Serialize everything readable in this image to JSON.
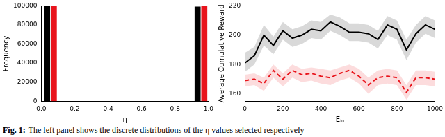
{
  "chart_data": [
    {
      "type": "bar",
      "xlabel": "η",
      "ylabel": "Frequency",
      "xlim": [
        0,
        1
      ],
      "xticks": [
        {
          "value": 0,
          "label": "0.0"
        },
        {
          "value": 0.2,
          "label": "0.2"
        },
        {
          "value": 0.4,
          "label": "0.4"
        },
        {
          "value": 0.6,
          "label": "0.6"
        },
        {
          "value": 0.8,
          "label": "0.8"
        },
        {
          "value": 1,
          "label": "1.0"
        }
      ],
      "ylim": [
        0,
        100000
      ],
      "yticks": [
        0,
        20000,
        40000,
        60000,
        80000,
        100000
      ],
      "grid": false,
      "series": [
        {
          "color": "#000000",
          "x": [
            0.035,
            0.935
          ],
          "values": [
            100000,
            99000
          ]
        },
        {
          "color": "#e8141c",
          "x": [
            0.075,
            0.975
          ],
          "values": [
            100000,
            100000
          ]
        }
      ]
    },
    {
      "type": "line",
      "xlabel": "Eᵢₙ",
      "ylabel": "Average Cumulative Reward",
      "xlim": [
        0,
        1000
      ],
      "xticks": [
        0,
        200,
        400,
        600,
        800,
        1000
      ],
      "ylim": [
        155,
        220
      ],
      "yticks": [
        160,
        180,
        200,
        220
      ],
      "grid": false,
      "x": [
        0,
        50,
        100,
        150,
        200,
        250,
        300,
        350,
        400,
        450,
        500,
        550,
        600,
        650,
        700,
        750,
        800,
        850,
        900,
        950,
        1000
      ],
      "series": [
        {
          "color": "#000000",
          "line_style": "solid",
          "values": [
            181,
            186,
            200,
            193,
            203,
            198,
            200,
            204,
            203,
            209,
            206,
            202,
            202,
            201,
            197,
            207,
            204,
            190,
            201,
            207,
            204
          ],
          "lower": [
            175,
            180,
            193,
            187,
            197,
            192,
            194,
            198,
            197,
            203,
            200,
            196,
            196,
            195,
            191,
            200,
            197,
            183,
            195,
            201,
            198
          ],
          "upper": [
            188,
            192,
            207,
            199,
            209,
            204,
            206,
            210,
            209,
            214,
            212,
            208,
            208,
            207,
            203,
            213,
            210,
            197,
            207,
            213,
            210
          ]
        },
        {
          "color": "#e8141c",
          "line_style": "dashed",
          "values": [
            169,
            170,
            167,
            176,
            170,
            176,
            173,
            174,
            172,
            171,
            174,
            176,
            172,
            166,
            171,
            172,
            171,
            161,
            171,
            171,
            170
          ],
          "lower": [
            165,
            166,
            162,
            171,
            165,
            171,
            168,
            169,
            167,
            166,
            169,
            171,
            167,
            160,
            166,
            167,
            166,
            156,
            166,
            166,
            165
          ],
          "upper": [
            173,
            174,
            171,
            180,
            174,
            180,
            177,
            178,
            177,
            176,
            178,
            180,
            177,
            171,
            176,
            177,
            176,
            166,
            176,
            176,
            175
          ]
        }
      ]
    }
  ],
  "caption": {
    "label": "Fig. 1:",
    "text": "The left panel shows the discrete distributions of the η values selected respectively"
  }
}
